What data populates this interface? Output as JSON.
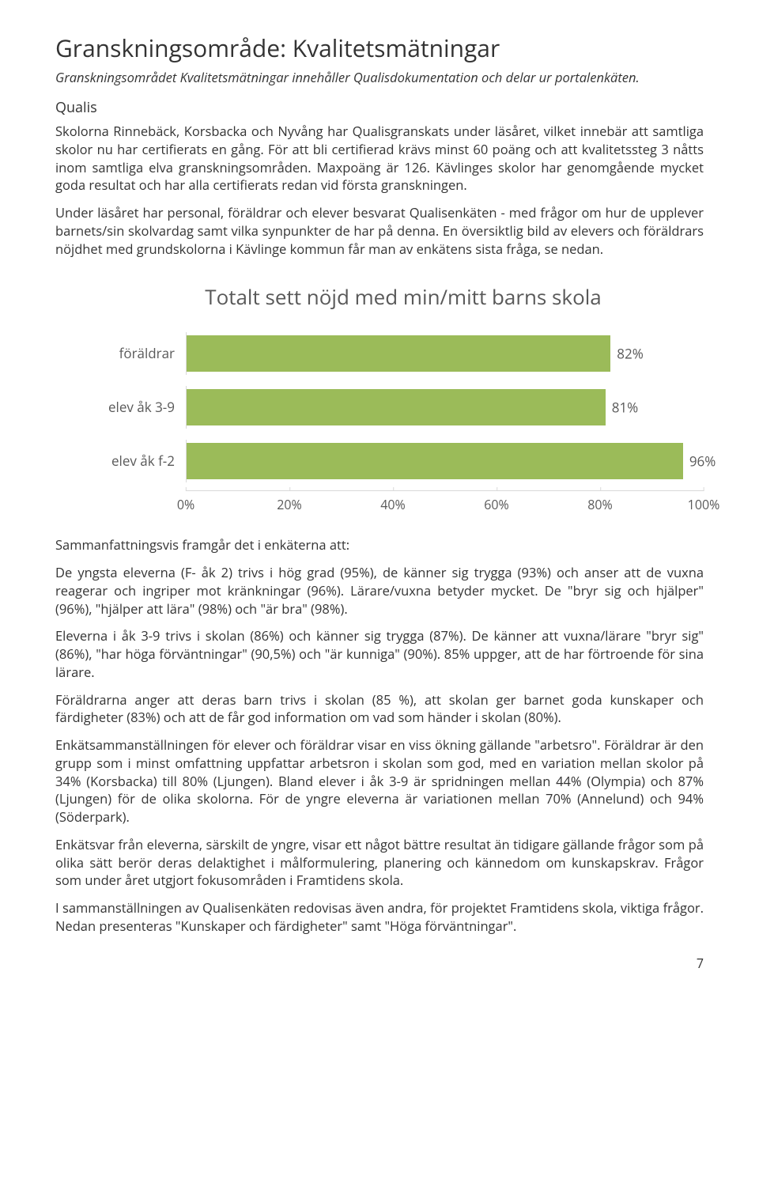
{
  "heading": "Granskningsområde: Kvalitetsmätningar",
  "intro": "Granskningsområdet Kvalitetsmätningar innehåller Qualisdokumentation och delar ur portalenkäten.",
  "subheading": "Qualis",
  "para1": "Skolorna Rinnebäck, Korsbacka och Nyvång har Qualisgranskats under läsåret, vilket innebär att samtliga skolor nu har certifierats en gång. För att bli certifierad krävs minst 60 poäng och att kvalitetssteg 3 nåtts inom samtliga elva granskningsområden. Maxpoäng är 126. Kävlinges skolor har genomgående mycket goda resultat och har alla certifierats redan vid första granskningen.",
  "para2": "Under läsåret har personal, föräldrar och elever besvarat Qualisenkäten - med frågor om hur de upplever barnets/sin skolvardag samt vilka synpunkter de har på denna. En översiktlig bild av elevers och föräldrars nöjdhet med grundskolorna i Kävlinge kommun får man av enkätens sista fråga, se nedan.",
  "chart": {
    "title": "Totalt sett nöjd med min/mitt barns skola",
    "bar_color": "#9bbb59",
    "text_color": "#595959",
    "grid_color": "#d9d9d9",
    "xmin": 0,
    "xmax": 100,
    "xtick_step": 20,
    "ticks": [
      "0%",
      "20%",
      "40%",
      "60%",
      "80%",
      "100%"
    ],
    "rows": [
      {
        "category": "föräldrar",
        "value": 82,
        "label": "82%"
      },
      {
        "category": "elev åk 3-9",
        "value": 81,
        "label": "81%"
      },
      {
        "category": "elev åk f-2",
        "value": 96,
        "label": "96%"
      }
    ]
  },
  "para3": "Sammanfattningsvis framgår det i enkäterna att:",
  "para4": "De yngsta eleverna (F- åk 2) trivs i hög grad (95%), de känner sig trygga (93%) och anser att de vuxna reagerar och ingriper mot kränkningar (96%). Lärare/vuxna betyder mycket. De \"bryr sig och hjälper\" (96%), \"hjälper att lära\" (98%) och \"är bra\" (98%).",
  "para5": "Eleverna i åk 3-9 trivs i skolan (86%) och känner sig trygga (87%). De känner att vuxna/lärare \"bryr sig\" (86%), \"har höga förväntningar\" (90,5%) och \"är kunniga\" (90%). 85% uppger, att de har förtroende för sina lärare.",
  "para6": "Föräldrarna anger att deras barn trivs i skolan (85 %), att skolan ger barnet goda kunskaper och färdigheter (83%) och att de får god information om vad som händer i skolan (80%).",
  "para7": "Enkätsammanställningen för elever och föräldrar visar en viss ökning gällande \"arbetsro\". Föräldrar är den grupp som i minst omfattning uppfattar arbetsron i skolan som god, med en variation mellan skolor på 34% (Korsbacka) till 80% (Ljungen). Bland elever i åk 3-9 är spridningen mellan 44% (Olympia) och 87% (Ljungen) för de olika skolorna. För de yngre eleverna är variationen mellan 70% (Annelund) och 94% (Söderpark).",
  "para8": "Enkätsvar från eleverna, särskilt de yngre, visar ett något bättre resultat än tidigare gällande frågor som på olika sätt berör deras delaktighet i målformulering, planering och kännedom om kunskapskrav. Frågor som under året utgjort fokusområden i Framtidens skola.",
  "para9": "I sammanställningen av Qualisenkäten redovisas även andra, för projektet Framtidens skola, viktiga frågor. Nedan presenteras \"Kunskaper och färdigheter\" samt \"Höga förväntningar\".",
  "page_number": "7"
}
